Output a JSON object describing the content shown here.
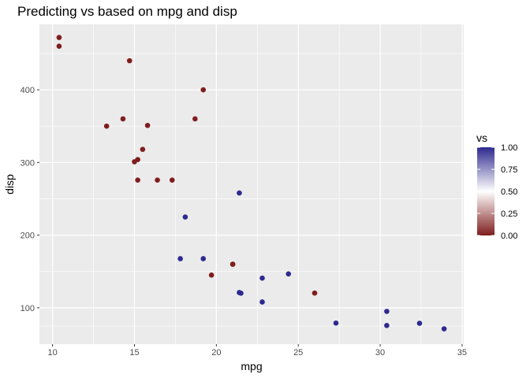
{
  "chart_data": {
    "type": "scatter",
    "title": "Predicting vs based on mpg and disp",
    "xlabel": "mpg",
    "ylabel": "disp",
    "xlim": [
      9.2,
      35.1
    ],
    "ylim": [
      50,
      490
    ],
    "xticks": [
      10,
      15,
      20,
      25,
      30,
      35
    ],
    "xtick_labels": [
      "10",
      "15",
      "20",
      "25",
      "30",
      "35"
    ],
    "yticks": [
      100,
      200,
      300,
      400
    ],
    "ytick_labels": [
      "100",
      "200",
      "300",
      "400"
    ],
    "grid": true,
    "legend": {
      "title": "vs",
      "placement": "right",
      "labels": [
        "1.00",
        "0.75",
        "0.50",
        "0.25",
        "0.00"
      ],
      "values": [
        1.0,
        0.75,
        0.5,
        0.25,
        0.0
      ]
    },
    "color_scale": {
      "low": "#7f1d1d",
      "mid": "#ffffff",
      "high": "#2e2a8f",
      "midpoint": 0.5
    },
    "points": [
      {
        "x": 10.4,
        "y": 472,
        "vs": 0
      },
      {
        "x": 10.4,
        "y": 460,
        "vs": 0
      },
      {
        "x": 14.7,
        "y": 440,
        "vs": 0
      },
      {
        "x": 19.2,
        "y": 400,
        "vs": 0
      },
      {
        "x": 14.3,
        "y": 360,
        "vs": 0
      },
      {
        "x": 18.7,
        "y": 360,
        "vs": 0
      },
      {
        "x": 15.8,
        "y": 351,
        "vs": 0
      },
      {
        "x": 13.3,
        "y": 350,
        "vs": 0
      },
      {
        "x": 15.5,
        "y": 318,
        "vs": 0
      },
      {
        "x": 15.2,
        "y": 304,
        "vs": 0
      },
      {
        "x": 15.0,
        "y": 301,
        "vs": 0
      },
      {
        "x": 15.2,
        "y": 275.8,
        "vs": 0
      },
      {
        "x": 16.4,
        "y": 275.8,
        "vs": 0
      },
      {
        "x": 17.3,
        "y": 275.8,
        "vs": 0
      },
      {
        "x": 21.4,
        "y": 258,
        "vs": 1
      },
      {
        "x": 18.1,
        "y": 225,
        "vs": 1
      },
      {
        "x": 17.8,
        "y": 167.6,
        "vs": 1
      },
      {
        "x": 19.2,
        "y": 167.6,
        "vs": 1
      },
      {
        "x": 21.0,
        "y": 160,
        "vs": 0
      },
      {
        "x": 21.0,
        "y": 160,
        "vs": 0
      },
      {
        "x": 24.4,
        "y": 146.7,
        "vs": 1
      },
      {
        "x": 19.7,
        "y": 145,
        "vs": 0
      },
      {
        "x": 22.8,
        "y": 140.8,
        "vs": 1
      },
      {
        "x": 21.4,
        "y": 121,
        "vs": 1
      },
      {
        "x": 21.5,
        "y": 120.1,
        "vs": 1
      },
      {
        "x": 26.0,
        "y": 120.3,
        "vs": 0
      },
      {
        "x": 22.8,
        "y": 108,
        "vs": 1
      },
      {
        "x": 30.4,
        "y": 95.1,
        "vs": 1
      },
      {
        "x": 27.3,
        "y": 79,
        "vs": 1
      },
      {
        "x": 32.4,
        "y": 78.7,
        "vs": 1
      },
      {
        "x": 30.4,
        "y": 75.7,
        "vs": 1
      },
      {
        "x": 33.9,
        "y": 71.1,
        "vs": 1
      }
    ]
  }
}
